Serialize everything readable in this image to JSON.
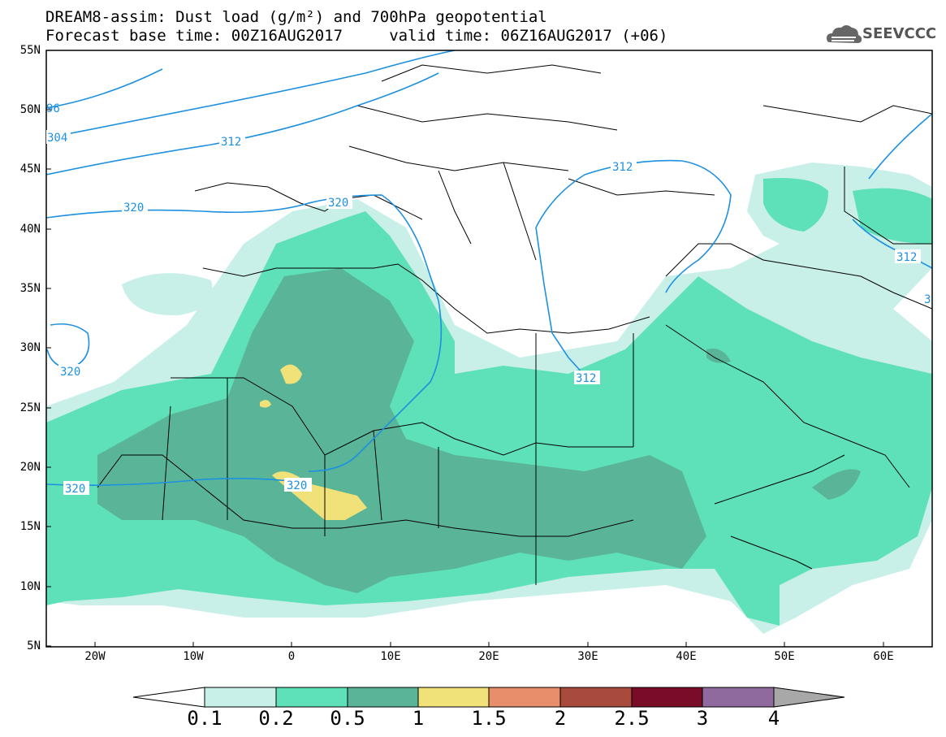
{
  "title": {
    "line1": "DREAM8-assim: Dust load (g/m²) and 700hPa geopotential",
    "line2": "Forecast base time: 00Z16AUG2017     valid time: 06Z16AUG2017 (+06)"
  },
  "logo": {
    "text": "SEEVCCC",
    "icon": "cloud-icon"
  },
  "axes": {
    "lat_labels": [
      "55N",
      "50N",
      "45N",
      "40N",
      "35N",
      "30N",
      "25N",
      "20N",
      "15N",
      "10N",
      "5N"
    ],
    "lon_labels": [
      "20W",
      "10W",
      "0",
      "10E",
      "20E",
      "30E",
      "40E",
      "50E",
      "60E"
    ]
  },
  "contour_labels": [
    "320",
    "320",
    "320",
    "320",
    "312",
    "312",
    "312",
    "312",
    "304",
    "96",
    "3"
  ],
  "colorbar": {
    "labels": [
      "0.1",
      "0.2",
      "0.5",
      "1",
      "1.5",
      "2",
      "2.5",
      "3",
      "4"
    ],
    "colors": [
      "#c8f0e8",
      "#5ee0b8",
      "#5ab598",
      "#f0e178",
      "#e88e6a",
      "#a84a3c",
      "#7a0c28",
      "#8e6a9e",
      "#a8a8a8"
    ]
  },
  "colors": {
    "dust_low": "#c8f0e8",
    "dust_mid": "#5ee0b8",
    "dust_high": "#5ab598",
    "dust_peak": "#f0e178",
    "contour": "#1e90e0",
    "border": "#000000"
  }
}
